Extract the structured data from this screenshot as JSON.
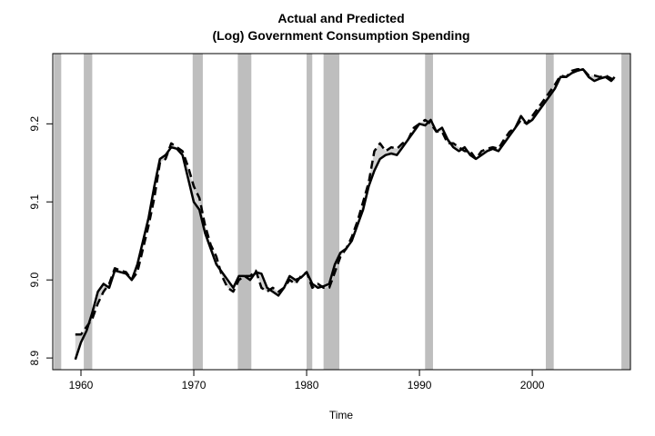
{
  "chart_data": {
    "type": "line",
    "title": "Actual and Predicted",
    "subtitle": "(Log) Government Consumption Spending",
    "xlabel": "Time",
    "ylabel": "",
    "xlim": [
      1957.5,
      2008.7
    ],
    "ylim": [
      8.885,
      9.29
    ],
    "x_ticks": [
      {
        "value": 1960,
        "label": "1960"
      },
      {
        "value": 1970,
        "label": "1970"
      },
      {
        "value": 1980,
        "label": "1980"
      },
      {
        "value": 1990,
        "label": "1990"
      },
      {
        "value": 2000,
        "label": "2000"
      }
    ],
    "y_ticks": [
      {
        "value": 8.9,
        "label": "8.9"
      },
      {
        "value": 9.0,
        "label": "9.0"
      },
      {
        "value": 9.1,
        "label": "9.1"
      },
      {
        "value": 9.2,
        "label": "9.2"
      }
    ],
    "recessions": [
      [
        1957.6,
        1958.25
      ],
      [
        1960.25,
        1961.0
      ],
      [
        1969.9,
        1970.8
      ],
      [
        1973.9,
        1975.1
      ],
      [
        1980.0,
        1980.5
      ],
      [
        1981.5,
        1982.9
      ],
      [
        1990.5,
        1991.2
      ],
      [
        2001.2,
        2001.9
      ],
      [
        2007.9,
        2008.7
      ]
    ],
    "recession_color": "#bebebe",
    "fill_color": "#d3d3d3",
    "series": [
      {
        "style": "solid",
        "points": [
          [
            1959.5,
            8.898
          ],
          [
            1960.0,
            8.92
          ],
          [
            1960.5,
            8.935
          ],
          [
            1961.0,
            8.958
          ],
          [
            1961.5,
            8.985
          ],
          [
            1962.0,
            8.995
          ],
          [
            1962.5,
            8.99
          ],
          [
            1963.0,
            9.012
          ],
          [
            1963.5,
            9.01
          ],
          [
            1964.0,
            9.008
          ],
          [
            1964.5,
            9.0
          ],
          [
            1965.0,
            9.02
          ],
          [
            1965.5,
            9.05
          ],
          [
            1966.0,
            9.08
          ],
          [
            1966.5,
            9.12
          ],
          [
            1967.0,
            9.155
          ],
          [
            1967.5,
            9.16
          ],
          [
            1968.0,
            9.17
          ],
          [
            1968.5,
            9.168
          ],
          [
            1969.0,
            9.16
          ],
          [
            1969.5,
            9.13
          ],
          [
            1970.0,
            9.1
          ],
          [
            1970.5,
            9.09
          ],
          [
            1971.0,
            9.06
          ],
          [
            1971.5,
            9.04
          ],
          [
            1972.0,
            9.02
          ],
          [
            1972.5,
            9.01
          ],
          [
            1973.0,
            9.0
          ],
          [
            1973.5,
            8.99
          ],
          [
            1974.0,
            9.005
          ],
          [
            1974.5,
            9.005
          ],
          [
            1975.0,
            9.0
          ],
          [
            1975.5,
            9.01
          ],
          [
            1976.0,
            9.008
          ],
          [
            1976.5,
            8.99
          ],
          [
            1977.0,
            8.985
          ],
          [
            1977.5,
            8.98
          ],
          [
            1978.0,
            8.99
          ],
          [
            1978.5,
            9.005
          ],
          [
            1979.0,
            9.0
          ],
          [
            1979.5,
            9.003
          ],
          [
            1980.0,
            9.01
          ],
          [
            1980.5,
            8.995
          ],
          [
            1981.0,
            8.99
          ],
          [
            1981.5,
            8.992
          ],
          [
            1982.0,
            8.995
          ],
          [
            1982.5,
            9.02
          ],
          [
            1983.0,
            9.035
          ],
          [
            1983.5,
            9.04
          ],
          [
            1984.0,
            9.05
          ],
          [
            1984.5,
            9.07
          ],
          [
            1985.0,
            9.09
          ],
          [
            1985.5,
            9.12
          ],
          [
            1986.0,
            9.14
          ],
          [
            1986.5,
            9.155
          ],
          [
            1987.0,
            9.16
          ],
          [
            1987.5,
            9.162
          ],
          [
            1988.0,
            9.16
          ],
          [
            1988.5,
            9.17
          ],
          [
            1989.0,
            9.18
          ],
          [
            1989.5,
            9.19
          ],
          [
            1990.0,
            9.2
          ],
          [
            1990.5,
            9.198
          ],
          [
            1991.0,
            9.205
          ],
          [
            1991.5,
            9.19
          ],
          [
            1992.0,
            9.195
          ],
          [
            1992.5,
            9.18
          ],
          [
            1993.0,
            9.17
          ],
          [
            1993.5,
            9.165
          ],
          [
            1994.0,
            9.17
          ],
          [
            1994.5,
            9.16
          ],
          [
            1995.0,
            9.155
          ],
          [
            1995.5,
            9.16
          ],
          [
            1996.0,
            9.165
          ],
          [
            1996.5,
            9.168
          ],
          [
            1997.0,
            9.165
          ],
          [
            1997.5,
            9.175
          ],
          [
            1998.0,
            9.185
          ],
          [
            1998.5,
            9.195
          ],
          [
            1999.0,
            9.21
          ],
          [
            1999.5,
            9.2
          ],
          [
            2000.0,
            9.205
          ],
          [
            2000.5,
            9.215
          ],
          [
            2001.0,
            9.225
          ],
          [
            2001.5,
            9.235
          ],
          [
            2002.0,
            9.245
          ],
          [
            2002.5,
            9.26
          ],
          [
            2003.0,
            9.26
          ],
          [
            2003.5,
            9.265
          ],
          [
            2004.0,
            9.268
          ],
          [
            2004.5,
            9.27
          ],
          [
            2005.0,
            9.26
          ],
          [
            2005.5,
            9.255
          ],
          [
            2006.0,
            9.258
          ],
          [
            2006.5,
            9.26
          ],
          [
            2007.0,
            9.255
          ],
          [
            2007.3,
            9.26
          ]
        ]
      },
      {
        "style": "dashed",
        "points": [
          [
            1959.5,
            8.93
          ],
          [
            1960.0,
            8.93
          ],
          [
            1960.5,
            8.94
          ],
          [
            1961.0,
            8.95
          ],
          [
            1961.5,
            8.97
          ],
          [
            1962.0,
            8.985
          ],
          [
            1962.5,
            8.995
          ],
          [
            1963.0,
            9.015
          ],
          [
            1963.5,
            9.012
          ],
          [
            1964.0,
            9.01
          ],
          [
            1964.5,
            9.0
          ],
          [
            1965.0,
            9.01
          ],
          [
            1965.5,
            9.04
          ],
          [
            1966.0,
            9.07
          ],
          [
            1966.5,
            9.105
          ],
          [
            1967.0,
            9.15
          ],
          [
            1967.5,
            9.155
          ],
          [
            1968.0,
            9.175
          ],
          [
            1968.5,
            9.17
          ],
          [
            1969.0,
            9.165
          ],
          [
            1969.5,
            9.145
          ],
          [
            1970.0,
            9.12
          ],
          [
            1970.5,
            9.105
          ],
          [
            1971.0,
            9.07
          ],
          [
            1971.5,
            9.045
          ],
          [
            1972.0,
            9.03
          ],
          [
            1972.5,
            9.005
          ],
          [
            1973.0,
            8.99
          ],
          [
            1973.5,
            8.985
          ],
          [
            1974.0,
            9.0
          ],
          [
            1974.5,
            9.005
          ],
          [
            1975.0,
            9.005
          ],
          [
            1975.5,
            9.012
          ],
          [
            1976.0,
            8.99
          ],
          [
            1976.5,
            8.985
          ],
          [
            1977.0,
            8.99
          ],
          [
            1977.5,
            8.985
          ],
          [
            1978.0,
            8.99
          ],
          [
            1978.5,
            9.0
          ],
          [
            1979.0,
            8.995
          ],
          [
            1979.5,
            9.005
          ],
          [
            1980.0,
            9.01
          ],
          [
            1980.5,
            8.99
          ],
          [
            1981.0,
            8.995
          ],
          [
            1981.5,
            8.99
          ],
          [
            1982.0,
            8.99
          ],
          [
            1982.5,
            9.01
          ],
          [
            1983.0,
            9.03
          ],
          [
            1983.5,
            9.04
          ],
          [
            1984.0,
            9.055
          ],
          [
            1984.5,
            9.075
          ],
          [
            1985.0,
            9.1
          ],
          [
            1985.5,
            9.125
          ],
          [
            1986.0,
            9.165
          ],
          [
            1986.5,
            9.175
          ],
          [
            1987.0,
            9.165
          ],
          [
            1987.5,
            9.17
          ],
          [
            1988.0,
            9.168
          ],
          [
            1988.5,
            9.175
          ],
          [
            1989.0,
            9.18
          ],
          [
            1989.5,
            9.195
          ],
          [
            1990.0,
            9.2
          ],
          [
            1990.5,
            9.205
          ],
          [
            1991.0,
            9.2
          ],
          [
            1991.5,
            9.19
          ],
          [
            1992.0,
            9.19
          ],
          [
            1992.5,
            9.175
          ],
          [
            1993.0,
            9.175
          ],
          [
            1993.5,
            9.17
          ],
          [
            1994.0,
            9.165
          ],
          [
            1994.5,
            9.165
          ],
          [
            1995.0,
            9.155
          ],
          [
            1995.5,
            9.165
          ],
          [
            1996.0,
            9.168
          ],
          [
            1996.5,
            9.17
          ],
          [
            1997.0,
            9.168
          ],
          [
            1997.5,
            9.18
          ],
          [
            1998.0,
            9.19
          ],
          [
            1998.5,
            9.195
          ],
          [
            1999.0,
            9.205
          ],
          [
            1999.5,
            9.2
          ],
          [
            2000.0,
            9.21
          ],
          [
            2000.5,
            9.22
          ],
          [
            2001.0,
            9.23
          ],
          [
            2001.5,
            9.24
          ],
          [
            2002.0,
            9.25
          ],
          [
            2002.5,
            9.262
          ],
          [
            2003.0,
            9.26
          ],
          [
            2003.5,
            9.268
          ],
          [
            2004.0,
            9.27
          ],
          [
            2004.5,
            9.27
          ],
          [
            2005.0,
            9.262
          ],
          [
            2005.5,
            9.262
          ],
          [
            2006.0,
            9.26
          ],
          [
            2006.5,
            9.262
          ],
          [
            2007.0,
            9.258
          ],
          [
            2007.3,
            9.255
          ]
        ]
      }
    ]
  }
}
